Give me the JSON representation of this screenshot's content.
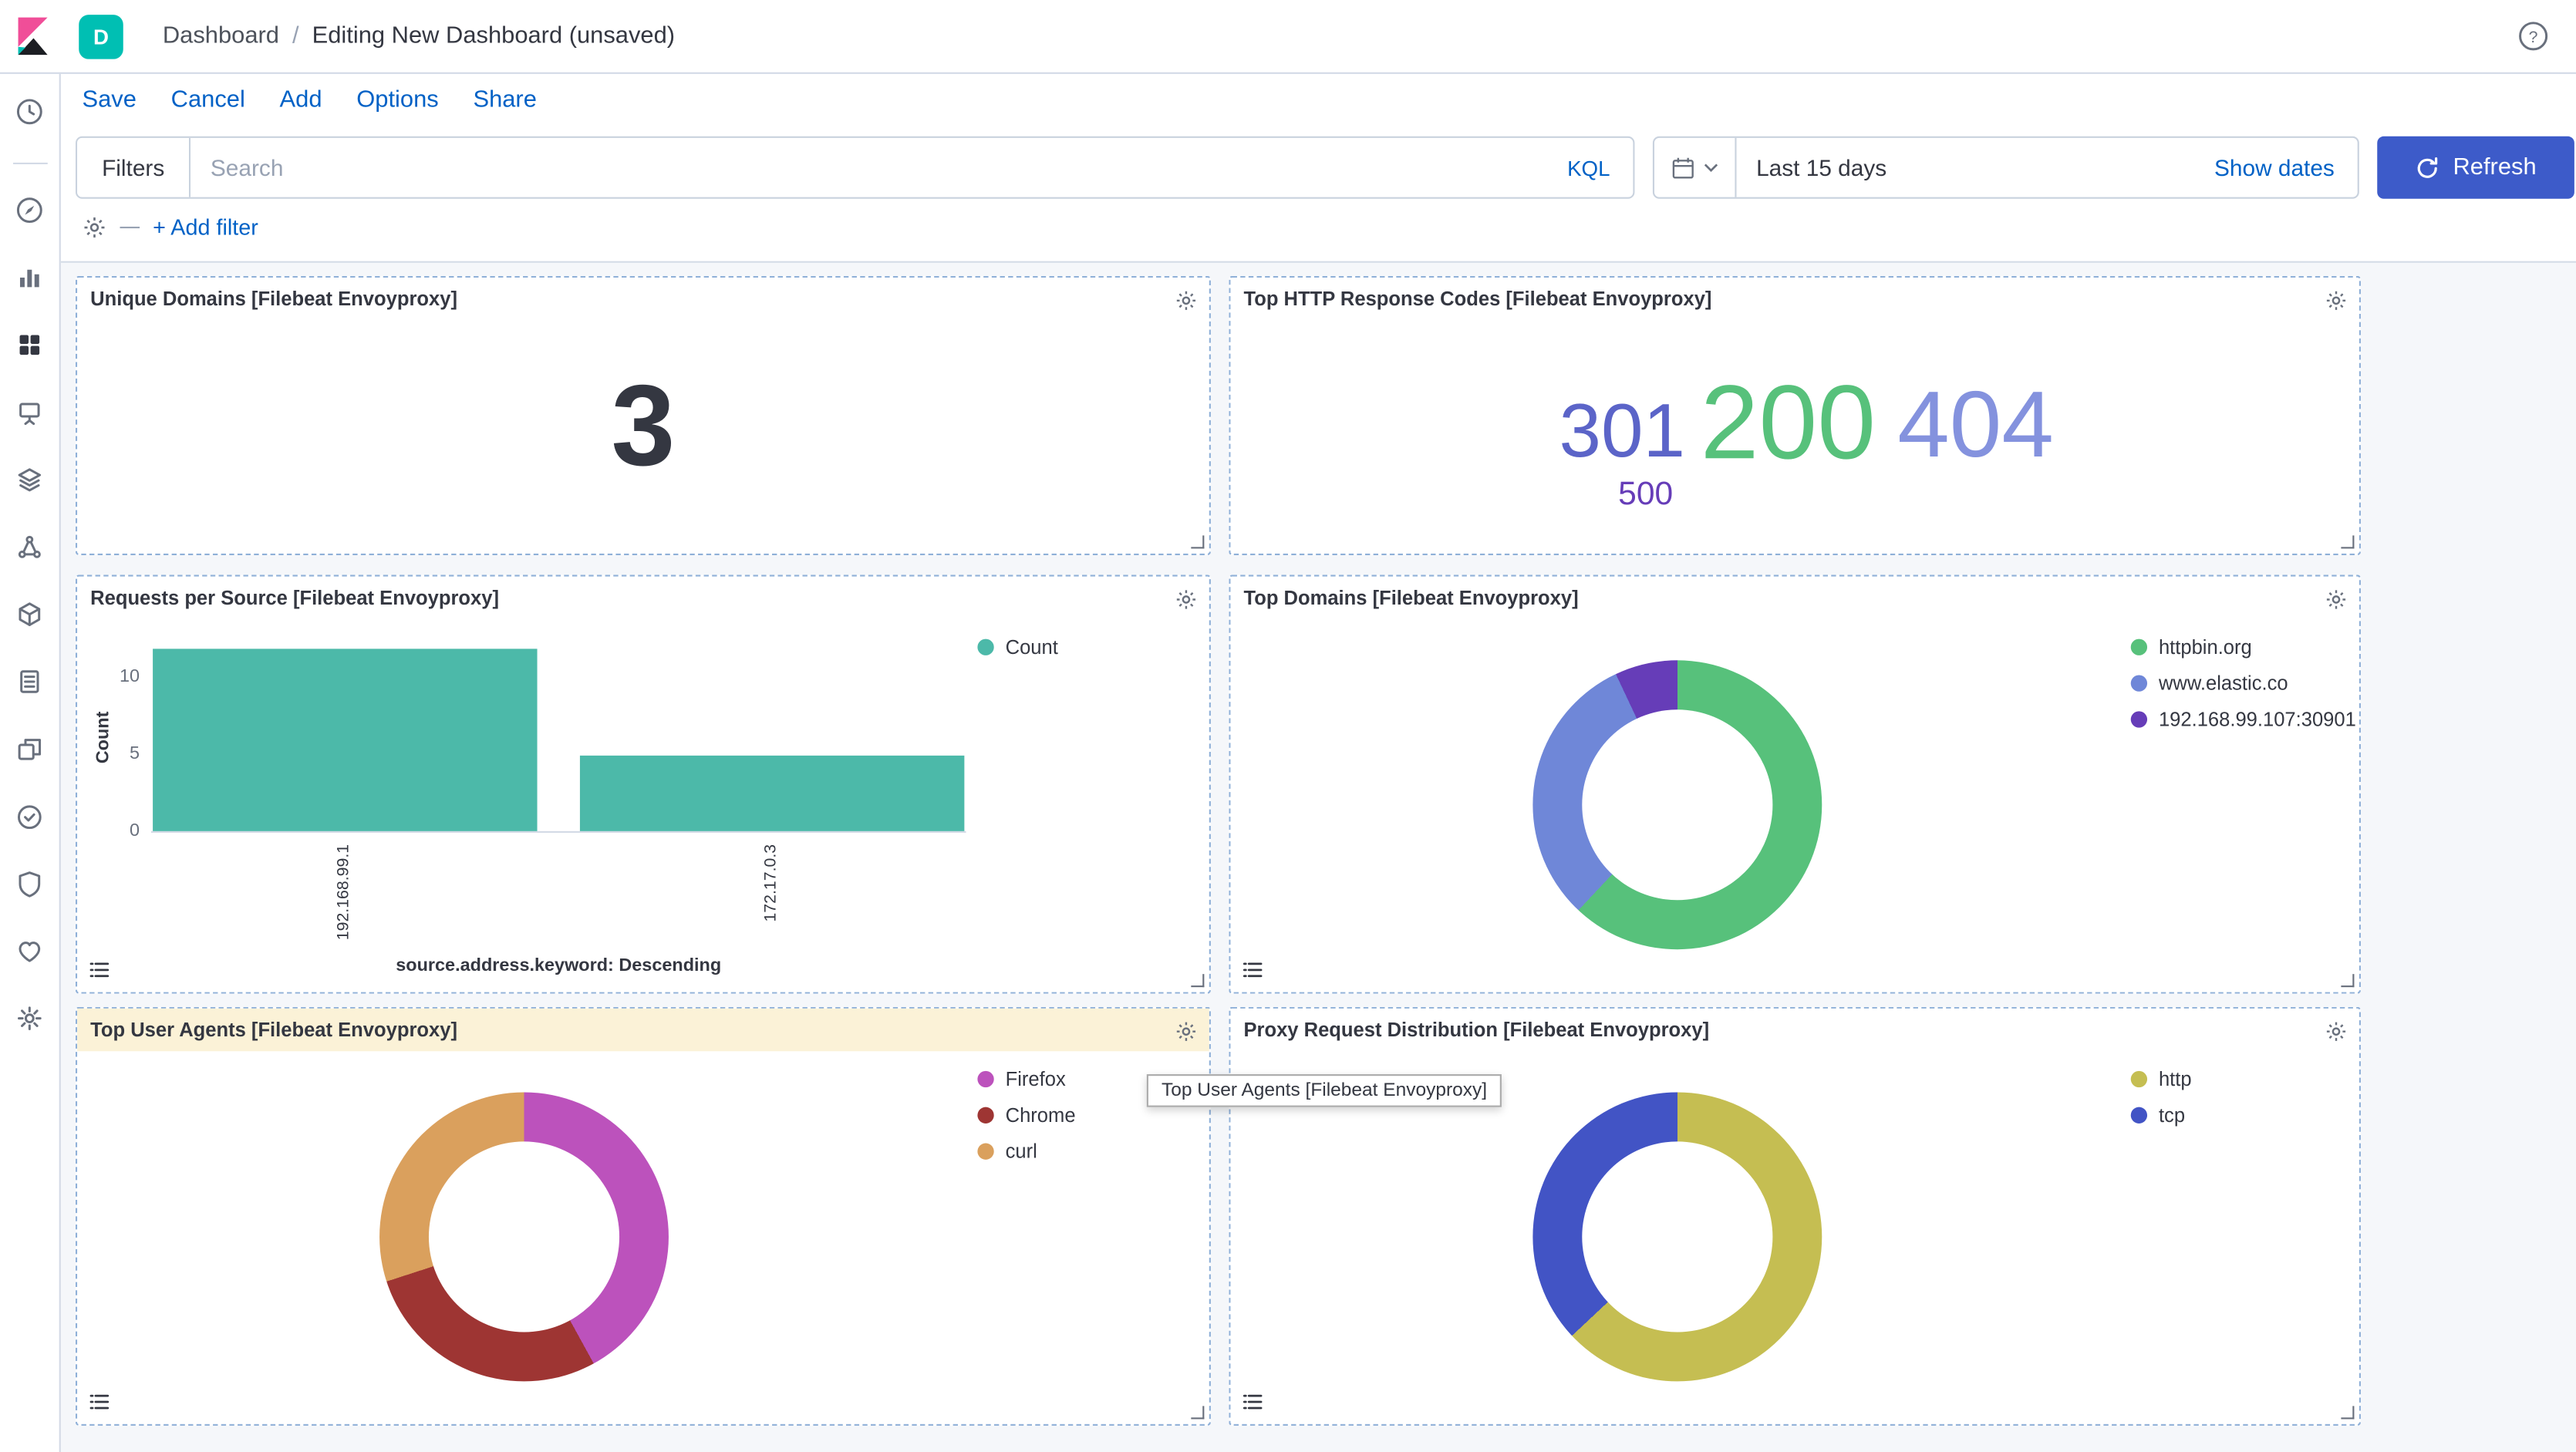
{
  "colors": {
    "link_blue": "#0061c6",
    "refresh_button_blue": "#3d5bc9",
    "badge_teal": "#00bfb3",
    "panel_border_blue": "#8fb0d8",
    "content_background": "#f5f7fa"
  },
  "header": {
    "space_badge": "D",
    "breadcrumb": {
      "section": "Dashboard",
      "separator": "/",
      "page": "Editing New Dashboard (unsaved)"
    }
  },
  "menu": {
    "items": [
      {
        "label": "Save"
      },
      {
        "label": "Cancel"
      },
      {
        "label": "Add"
      },
      {
        "label": "Options"
      },
      {
        "label": "Share"
      }
    ]
  },
  "filter_bar": {
    "filters_label": "Filters",
    "search_placeholder": "Search",
    "kql_label": "KQL",
    "time_range_value": "Last 15 days",
    "show_dates_label": "Show dates",
    "refresh_label": "Refresh",
    "add_filter_label": "+ Add filter"
  },
  "sidebar": {
    "items": [
      "recently-viewed",
      "discover",
      "visualize",
      "dashboard",
      "canvas",
      "maps",
      "machine-learning",
      "infrastructure",
      "logs",
      "apm",
      "uptime",
      "siem",
      "monitoring",
      "management"
    ]
  },
  "tooltip": {
    "text": "Top User Agents [Filebeat Envoyproxy]"
  },
  "panels": [
    {
      "title": "Unique Domains [Filebeat Envoyproxy]",
      "type": "metric",
      "value": "3"
    },
    {
      "title": "Top HTTP Response Codes [Filebeat Envoyproxy]",
      "type": "tag_cloud",
      "chart_data": {
        "type": "tagcloud",
        "tags": [
          {
            "term": "301",
            "color": "#5b64c8",
            "font_size": 46
          },
          {
            "term": "200",
            "color": "#57c17b",
            "font_size": 64
          },
          {
            "term": "404",
            "color": "#8492de",
            "font_size": 57
          },
          {
            "term": "500",
            "color": "#663db8",
            "font_size": 20
          }
        ]
      }
    },
    {
      "title": "Requests per Source [Filebeat Envoyproxy]",
      "type": "bar_chart",
      "chart_data": {
        "type": "bar",
        "categories": [
          "192.168.99.1",
          "172.17.0.3"
        ],
        "values": [
          12,
          5
        ],
        "series": [
          {
            "name": "Count",
            "color": "#4cb9a9"
          }
        ],
        "xlabel": "source.address.keyword: Descending",
        "ylabel": "Count",
        "yticks": [
          0,
          5,
          10
        ],
        "ylim": [
          0,
          12
        ],
        "legend_position": "right"
      }
    },
    {
      "title": "Top Domains [Filebeat Envoyproxy]",
      "type": "donut",
      "chart_data": {
        "type": "pie",
        "labels": [
          "httpbin.org",
          "www.elastic.co",
          "192.168.99.107:30901"
        ],
        "values_pct": [
          62,
          31,
          7
        ],
        "colors": [
          "#57c17b",
          "#6f87d8",
          "#663db8"
        ],
        "legend_position": "right"
      }
    },
    {
      "title": "Top User Agents [Filebeat Envoyproxy]",
      "type": "donut",
      "header_highlight": true,
      "chart_data": {
        "type": "pie",
        "labels": [
          "Firefox",
          "Chrome",
          "curl"
        ],
        "values_pct": [
          42,
          28,
          30
        ],
        "colors": [
          "#bc52bc",
          "#9e3533",
          "#daa05d"
        ],
        "legend_position": "right"
      }
    },
    {
      "title": "Proxy Request Distribution [Filebeat Envoyproxy]",
      "type": "donut",
      "chart_data": {
        "type": "pie",
        "labels": [
          "http",
          "tcp"
        ],
        "values_pct": [
          63,
          37
        ],
        "colors": [
          "#c5be52",
          "#4254c5"
        ],
        "legend_position": "right"
      }
    }
  ]
}
